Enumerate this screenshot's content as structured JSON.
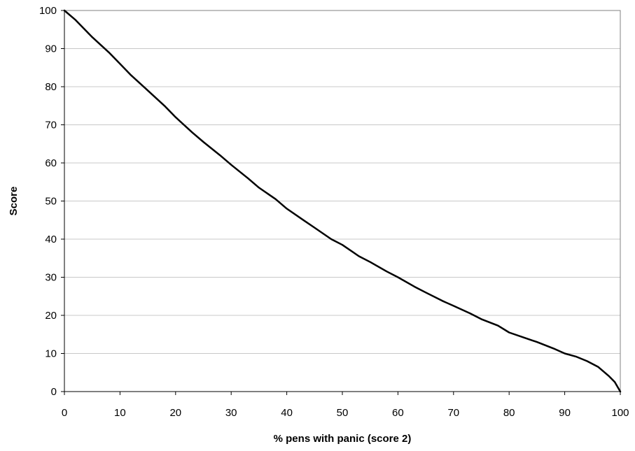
{
  "chart_data": {
    "type": "line",
    "title": "",
    "xlabel": "% pens with panic (score 2)",
    "ylabel": "Score",
    "xlim": [
      0,
      100
    ],
    "ylim": [
      0,
      100
    ],
    "x_ticks": [
      0,
      10,
      20,
      30,
      40,
      50,
      60,
      70,
      80,
      90,
      100
    ],
    "y_ticks": [
      0,
      10,
      20,
      30,
      40,
      50,
      60,
      70,
      80,
      90,
      100
    ],
    "grid": "horizontal",
    "legend": "none",
    "series": [
      {
        "color": "#000000",
        "x": [
          0,
          2,
          5,
          8,
          10,
          12,
          15,
          18,
          20,
          23,
          25,
          28,
          30,
          33,
          35,
          38,
          40,
          43,
          45,
          48,
          50,
          53,
          55,
          58,
          60,
          63,
          65,
          68,
          70,
          73,
          75,
          78,
          80,
          83,
          85,
          88,
          90,
          92,
          94,
          96,
          98,
          99,
          100
        ],
        "y": [
          100,
          97.5,
          93,
          89,
          86,
          83,
          79,
          75,
          72,
          68,
          65.5,
          62,
          59.5,
          56,
          53.5,
          50.5,
          48,
          45,
          43,
          40,
          38.5,
          35.5,
          34,
          31.5,
          30,
          27.5,
          26,
          23.8,
          22.5,
          20.5,
          19,
          17.3,
          15.5,
          14,
          13,
          11.3,
          10,
          9.2,
          8,
          6.5,
          4,
          2.5,
          0
        ]
      }
    ]
  }
}
